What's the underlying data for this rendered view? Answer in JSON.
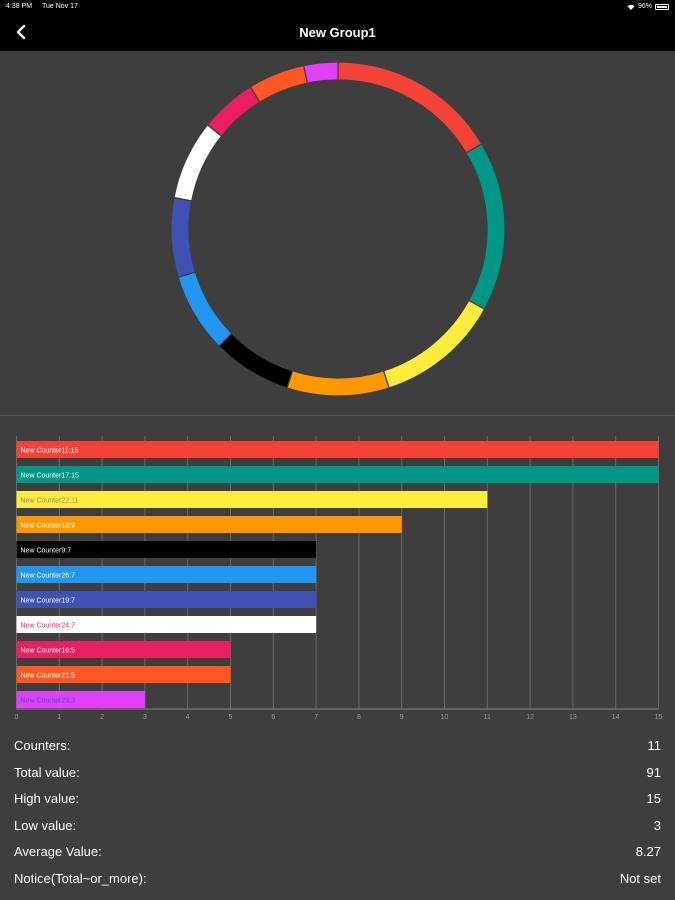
{
  "status": {
    "time": "4:38 PM",
    "date": "Tue Nov 17",
    "battery": "96%"
  },
  "nav": {
    "title": "New Group1",
    "back_icon": "chevron-left-icon"
  },
  "chart_data": [
    {
      "type": "pie",
      "style": "donut",
      "slices": [
        {
          "label": "New Counter11",
          "value": 15,
          "color": "#f44336"
        },
        {
          "label": "New Counter17",
          "value": 15,
          "color": "#009688"
        },
        {
          "label": "New Counter22",
          "value": 11,
          "color": "#ffeb3b"
        },
        {
          "label": "New Counter18",
          "value": 9,
          "color": "#ff9800"
        },
        {
          "label": "New Counter9",
          "value": 7,
          "color": "#000000"
        },
        {
          "label": "New Counter26",
          "value": 7,
          "color": "#2196f3"
        },
        {
          "label": "New Counter19",
          "value": 7,
          "color": "#3f51b5"
        },
        {
          "label": "New Counter24",
          "value": 7,
          "color": "#ffffff"
        },
        {
          "label": "New Counter16",
          "value": 5,
          "color": "#e91e63"
        },
        {
          "label": "New Counter21",
          "value": 5,
          "color": "#ff5722"
        },
        {
          "label": "New Counter23",
          "value": 3,
          "color": "#e040fb"
        }
      ]
    },
    {
      "type": "bar",
      "orientation": "horizontal",
      "xlim": [
        0,
        15
      ],
      "xticks": [
        "0",
        "1",
        "2",
        "3",
        "4",
        "5",
        "6",
        "7",
        "8",
        "9",
        "10",
        "11",
        "12",
        "13",
        "14",
        "15"
      ],
      "grid": true,
      "bars": [
        {
          "label": "New Counter11:15",
          "value": 15,
          "color": "#f44336",
          "text_color": "#ffffff"
        },
        {
          "label": "New Counter17:15",
          "value": 15,
          "color": "#009688",
          "text_color": "#ffffff"
        },
        {
          "label": "New Counter22:11",
          "value": 11,
          "color": "#ffeb3b",
          "text_color": "#8a8a8a"
        },
        {
          "label": "New Counter18:9",
          "value": 9,
          "color": "#ff9800",
          "text_color": "#ffffff"
        },
        {
          "label": "New Counter9:7",
          "value": 7,
          "color": "#000000",
          "text_color": "#ffffff"
        },
        {
          "label": "New Counter26:7",
          "value": 7,
          "color": "#2196f3",
          "text_color": "#ffffff"
        },
        {
          "label": "New Counter19:7",
          "value": 7,
          "color": "#3f51b5",
          "text_color": "#ffffff"
        },
        {
          "label": "New Counter24:7",
          "value": 7,
          "color": "#ffffff",
          "text_color": "#e91e63"
        },
        {
          "label": "New Counter16:5",
          "value": 5,
          "color": "#e91e63",
          "text_color": "#ffffff"
        },
        {
          "label": "New Counter21:5",
          "value": 5,
          "color": "#ff5722",
          "text_color": "#ffffff"
        },
        {
          "label": "New Counter23:3",
          "value": 3,
          "color": "#e040fb",
          "text_color": "#3f51b5"
        }
      ]
    }
  ],
  "stats": [
    {
      "label": "Counters:",
      "value": "11"
    },
    {
      "label": "Total value:",
      "value": "91"
    },
    {
      "label": "High value:",
      "value": "15"
    },
    {
      "label": "Low value:",
      "value": "3"
    },
    {
      "label": "Average Value:",
      "value": "8.27"
    },
    {
      "label": "Notice(Total~or_more):",
      "value": "Not set"
    }
  ]
}
